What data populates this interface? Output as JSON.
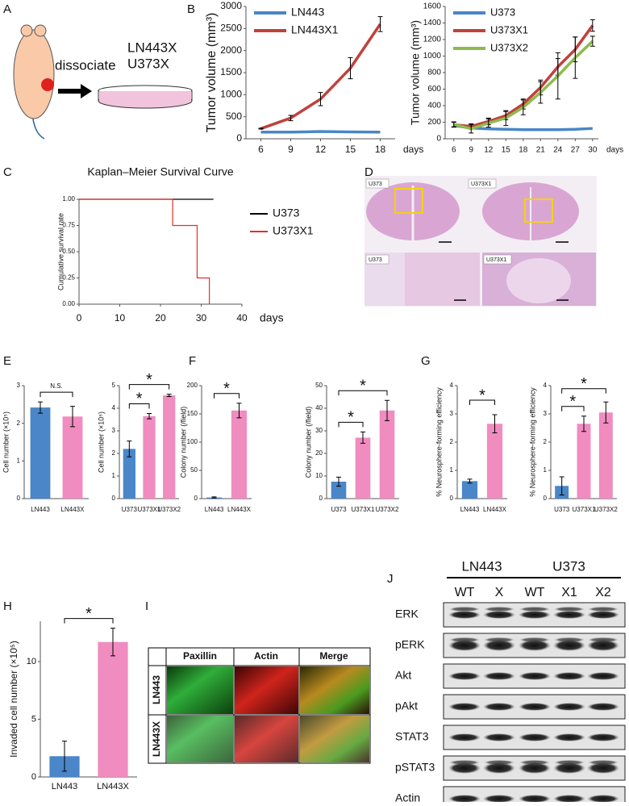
{
  "panel_labels": [
    "A",
    "B",
    "C",
    "D",
    "E",
    "F",
    "G",
    "H",
    "I",
    "J"
  ],
  "diagram": {
    "action": "dissociate",
    "lines": [
      "LN443X",
      "U373X"
    ]
  },
  "chart_data": [
    {
      "type": "line",
      "y_label": "Tumor volume (mm³)",
      "x_label": "days",
      "x": [
        6,
        9,
        12,
        15,
        18
      ],
      "xlim": [
        4.5,
        19.5
      ],
      "xticks": [
        6,
        9,
        12,
        15,
        18
      ],
      "ylim": [
        0,
        3000
      ],
      "yticks": [
        0,
        500,
        1000,
        1500,
        2000,
        2500,
        3000
      ],
      "legend": "upper left",
      "series": [
        {
          "name": "LN443",
          "color": "#4a86c8",
          "values": [
            150,
            150,
            165,
            155,
            150
          ]
        },
        {
          "name": "LN443X1",
          "color": "#c0413c",
          "values": [
            230,
            470,
            900,
            1600,
            2600
          ],
          "errors": [
            10,
            60,
            150,
            240,
            170
          ]
        }
      ]
    },
    {
      "type": "line",
      "y_label": "Tumor volume (mm³)",
      "x_label": "days",
      "x": [
        6,
        9,
        12,
        15,
        18,
        21,
        24,
        27,
        30
      ],
      "xlim": [
        4.5,
        31
      ],
      "xticks": [
        6,
        9,
        12,
        15,
        18,
        21,
        24,
        27,
        30
      ],
      "ylim": [
        0,
        1600
      ],
      "yticks": [
        0,
        200,
        400,
        600,
        800,
        1000,
        1200,
        1400,
        1600
      ],
      "legend": "upper left",
      "series": [
        {
          "name": "U373",
          "color": "#4a86c8",
          "values": [
            160,
            130,
            120,
            115,
            110,
            110,
            110,
            115,
            125
          ]
        },
        {
          "name": "U373X1",
          "color": "#c0413c",
          "values": [
            170,
            150,
            210,
            280,
            420,
            620,
            870,
            1080,
            1370
          ],
          "errors": [
            30,
            30,
            40,
            50,
            60,
            90,
            100,
            150,
            70
          ]
        },
        {
          "name": "U373X2",
          "color": "#8dbb4e",
          "values": [
            175,
            120,
            190,
            250,
            380,
            560,
            760,
            980,
            1180
          ],
          "errors": [
            30,
            50,
            50,
            90,
            90,
            130,
            280,
            250,
            60
          ]
        }
      ]
    },
    {
      "type": "step",
      "title": "Kaplan–Meier Survival Curve",
      "y_label": "Cumulative  survival rate",
      "x_label": "days",
      "xlim": [
        0,
        40
      ],
      "xticks": [
        0,
        10,
        20,
        30,
        40
      ],
      "ylim": [
        0,
        1
      ],
      "yticks": [
        {
          "value": 0,
          "label": "0.00"
        },
        {
          "value": 0.25,
          "label": "0.25"
        },
        {
          "value": 0.5,
          "label": "0.50"
        },
        {
          "value": 0.75,
          "label": "0.75"
        },
        {
          "value": 1,
          "label": "1.00"
        }
      ],
      "legend": "right",
      "series": [
        {
          "name": "U373",
          "color": "#000000",
          "x": [
            0,
            33
          ],
          "values": [
            1,
            1
          ]
        },
        {
          "name": "U373X1",
          "color": "#e0302a",
          "x": [
            0,
            23,
            29,
            32
          ],
          "values": [
            1,
            0.75,
            0.25,
            0
          ]
        }
      ]
    },
    {
      "type": "bar",
      "y_label": "Cell number (×10⁵)",
      "categories": [
        "LN443",
        "LN443X"
      ],
      "values": [
        2.42,
        2.18
      ],
      "errors": [
        0.15,
        0.27
      ],
      "colors": [
        "#4a86c8",
        "#f08cbf"
      ],
      "ylim": [
        0,
        3
      ],
      "yticks": [
        0,
        1,
        2,
        3
      ],
      "brackets": [
        {
          "from": "LN443",
          "to": "LN443X",
          "label": "N.S."
        }
      ]
    },
    {
      "type": "bar",
      "y_label": "Cell number (×10⁵)",
      "categories": [
        "U373",
        "U373X1",
        "U373X2"
      ],
      "values": [
        2.2,
        3.65,
        4.57
      ],
      "errors": [
        0.35,
        0.12,
        0.05
      ],
      "colors": [
        "#4a86c8",
        "#f08cbf",
        "#f08cbf"
      ],
      "ylim": [
        0,
        5
      ],
      "yticks": [
        0,
        1,
        2,
        3,
        4,
        5
      ],
      "brackets": [
        {
          "from": "U373",
          "to": "U373X1",
          "label": "*"
        },
        {
          "from": "U373",
          "to": "U373X2",
          "label": "*"
        }
      ]
    },
    {
      "type": "bar",
      "y_label": "Colony number (/field)",
      "categories": [
        "LN443",
        "LN443X"
      ],
      "values": [
        2,
        156
      ],
      "errors": [
        1,
        13
      ],
      "colors": [
        "#4a86c8",
        "#f08cbf"
      ],
      "ylim": [
        0,
        200
      ],
      "yticks": [
        0,
        50,
        100,
        150,
        200
      ],
      "brackets": [
        {
          "from": "LN443",
          "to": "LN443X",
          "label": "*"
        }
      ]
    },
    {
      "type": "bar",
      "y_label": "Colony number (/field)",
      "categories": [
        "U373",
        "U373X1",
        "U373X2"
      ],
      "values": [
        7.5,
        27,
        39
      ],
      "errors": [
        2,
        2.5,
        4.5
      ],
      "colors": [
        "#4a86c8",
        "#f08cbf",
        "#f08cbf"
      ],
      "ylim": [
        0,
        50
      ],
      "yticks": [
        0,
        10,
        20,
        30,
        40,
        50
      ],
      "brackets": [
        {
          "from": "U373",
          "to": "U373X1",
          "label": "*"
        },
        {
          "from": "U373",
          "to": "U373X2",
          "label": "*"
        }
      ]
    },
    {
      "type": "bar",
      "y_label": "% Neurosphere-forming efficiency",
      "categories": [
        "LN443",
        "LN443X"
      ],
      "values": [
        0.62,
        2.65
      ],
      "errors": [
        0.07,
        0.32
      ],
      "colors": [
        "#4a86c8",
        "#f08cbf"
      ],
      "ylim": [
        0,
        4
      ],
      "yticks": [
        0,
        1,
        2,
        3,
        4
      ],
      "brackets": [
        {
          "from": "LN443",
          "to": "LN443X",
          "label": "*"
        }
      ]
    },
    {
      "type": "bar",
      "y_label": "% Neurosphere-forming efficiency",
      "categories": [
        "U373",
        "U373X1",
        "U373X2"
      ],
      "values": [
        0.45,
        2.65,
        3.05
      ],
      "errors": [
        0.32,
        0.27,
        0.37
      ],
      "colors": [
        "#4a86c8",
        "#f08cbf",
        "#f08cbf"
      ],
      "ylim": [
        0,
        4
      ],
      "yticks": [
        0,
        1,
        2,
        3,
        4
      ],
      "brackets": [
        {
          "from": "U373",
          "to": "U373X1",
          "label": "*"
        },
        {
          "from": "U373",
          "to": "U373X2",
          "label": "*"
        }
      ]
    },
    {
      "type": "bar",
      "y_label": "Invaded cell number (×10⁵)",
      "categories": [
        "LN443",
        "LN443X"
      ],
      "values": [
        1.8,
        11.7
      ],
      "errors": [
        1.3,
        1.2
      ],
      "colors": [
        "#4a86c8",
        "#f08cbf"
      ],
      "ylim": [
        0,
        13.5
      ],
      "yticks": [
        0,
        5,
        10
      ],
      "brackets": [
        {
          "from": "LN443",
          "to": "LN443X",
          "label": "*"
        }
      ]
    }
  ],
  "histology": {
    "labels": [
      "U373",
      "U373X1",
      "U373",
      "U373X1"
    ]
  },
  "microscopy": {
    "columns": [
      "Paxillin",
      "Actin",
      "Merge"
    ],
    "rows": [
      "LN443",
      "LN443X"
    ]
  },
  "western_blot": {
    "groups": [
      "LN443",
      "U373"
    ],
    "lanes": [
      "WT",
      "X",
      "WT",
      "X1",
      "X2"
    ],
    "proteins": [
      "ERK",
      "pERK",
      "Akt",
      "pAkt",
      "STAT3",
      "pSTAT3",
      "Actin"
    ]
  }
}
